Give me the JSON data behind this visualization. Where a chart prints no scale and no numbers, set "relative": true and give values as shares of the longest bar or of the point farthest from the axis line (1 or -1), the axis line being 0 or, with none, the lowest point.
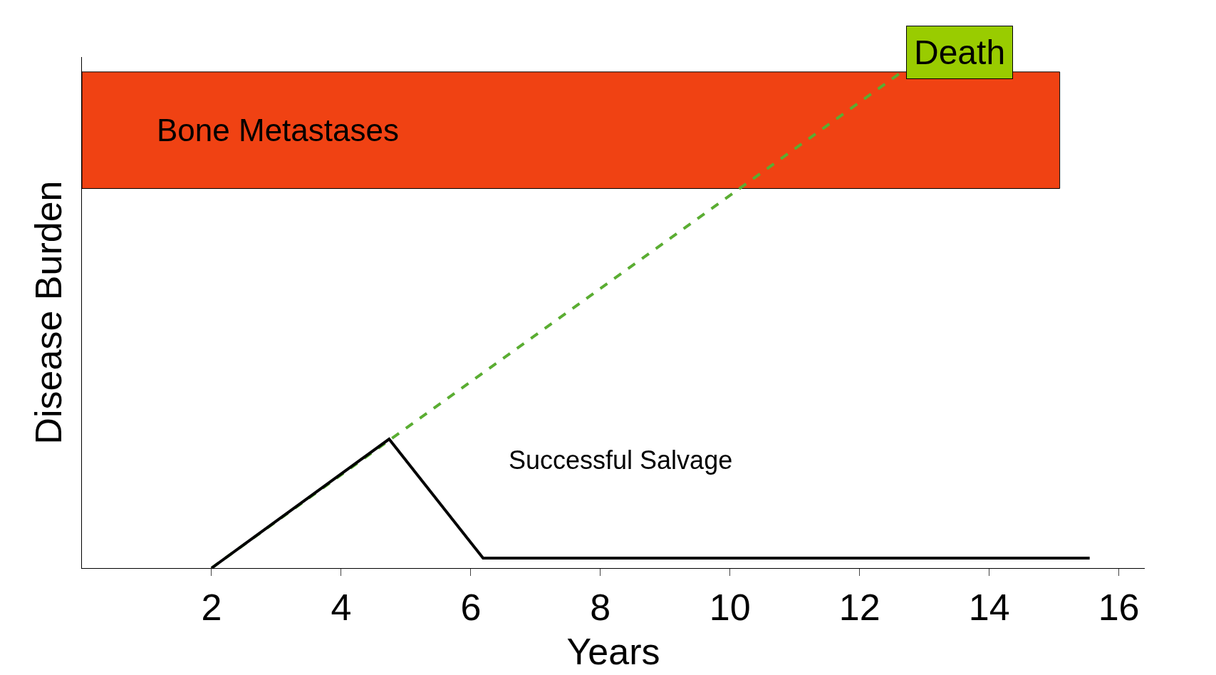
{
  "chart_data": {
    "type": "line",
    "relative": true,
    "xlabel": "Years",
    "ylabel": "Disease Burden",
    "xlim": [
      0,
      16.4
    ],
    "xticks": [
      2,
      4,
      6,
      8,
      10,
      12,
      14,
      16
    ],
    "tick_labels": "x",
    "grid": false,
    "legend": false,
    "marker": "none",
    "series": [
      {
        "color": "#5aad32",
        "line_style": "dashed",
        "x": [
          2,
          12.65
        ],
        "values": [
          0,
          1.0
        ]
      },
      {
        "color": "#000000",
        "line_style": "solid",
        "x": [
          2,
          4.74,
          6.19,
          15.55
        ],
        "values": [
          0,
          0.26,
          0.02,
          0.02
        ]
      }
    ],
    "bands": [
      {
        "axis": "y",
        "from": 0.765,
        "to": 1.0,
        "label": "Bone Metastases",
        "color": "#f04213"
      }
    ],
    "annotations": [
      {
        "text": "Death",
        "x": 12.65,
        "y": 1.0
      },
      "Successful Salvage"
    ]
  }
}
